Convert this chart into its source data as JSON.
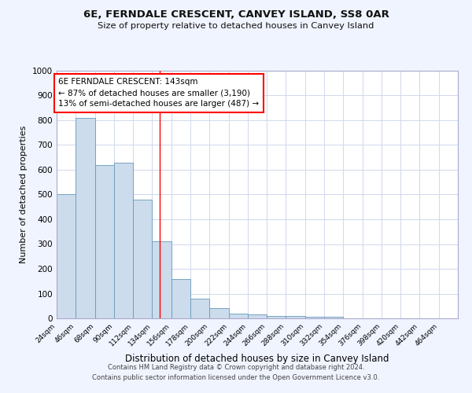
{
  "title": "6E, FERNDALE CRESCENT, CANVEY ISLAND, SS8 0AR",
  "subtitle": "Size of property relative to detached houses in Canvey Island",
  "xlabel": "Distribution of detached houses by size in Canvey Island",
  "ylabel": "Number of detached properties",
  "bar_values": [
    500,
    810,
    620,
    630,
    480,
    310,
    160,
    80,
    40,
    20,
    15,
    10,
    10,
    5,
    5,
    0,
    0,
    0,
    0,
    0
  ],
  "bin_labels": [
    "24sqm",
    "46sqm",
    "68sqm",
    "90sqm",
    "112sqm",
    "134sqm",
    "156sqm",
    "178sqm",
    "200sqm",
    "222sqm",
    "244sqm",
    "266sqm",
    "288sqm",
    "310sqm",
    "332sqm",
    "354sqm",
    "376sqm",
    "398sqm",
    "420sqm",
    "442sqm",
    "464sqm"
  ],
  "bar_color": "#ccdcec",
  "bar_edge_color": "#6699bb",
  "bin_edges": [
    24,
    46,
    68,
    90,
    112,
    134,
    156,
    178,
    200,
    222,
    244,
    266,
    288,
    310,
    332,
    354,
    376,
    398,
    420,
    442,
    464
  ],
  "property_size": 143,
  "annotation_title": "6E FERNDALE CRESCENT: 143sqm",
  "annotation_line1": "← 87% of detached houses are smaller (3,190)",
  "annotation_line2": "13% of semi-detached houses are larger (487) →",
  "ylim": [
    0,
    1000
  ],
  "yticks": [
    0,
    100,
    200,
    300,
    400,
    500,
    600,
    700,
    800,
    900,
    1000
  ],
  "footer1": "Contains HM Land Registry data © Crown copyright and database right 2024.",
  "footer2": "Contains public sector information licensed under the Open Government Licence v3.0.",
  "bg_color": "#f0f4ff",
  "plot_bg_color": "#ffffff",
  "grid_color": "#d0d8ec"
}
